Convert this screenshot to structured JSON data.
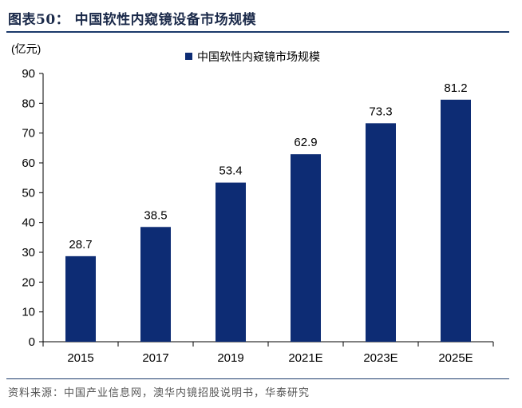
{
  "figure_title": "图表50： 中国软性内窥镜设备市场规模",
  "source_text": "资料来源：中国产业信息网，澳华内镜招股说明书，华泰研究",
  "colors": {
    "bar": "#0d2c74",
    "rule": "#1b3a6b"
  },
  "chart_data": {
    "type": "bar",
    "unit_label": "(亿元)",
    "categories": [
      "2015",
      "2017",
      "2019",
      "2021E",
      "2023E",
      "2025E"
    ],
    "series": [
      {
        "name": "中国软性内窥镜市场规模",
        "values": [
          28.7,
          38.5,
          53.4,
          62.9,
          73.3,
          81.2
        ]
      }
    ],
    "data_labels": [
      "28.7",
      "38.5",
      "53.4",
      "62.9",
      "73.3",
      "81.2"
    ],
    "ylim": [
      0,
      90
    ],
    "yticks": [
      0,
      10,
      20,
      30,
      40,
      50,
      60,
      70,
      80,
      90
    ],
    "legend_position": "top",
    "grid": false
  }
}
